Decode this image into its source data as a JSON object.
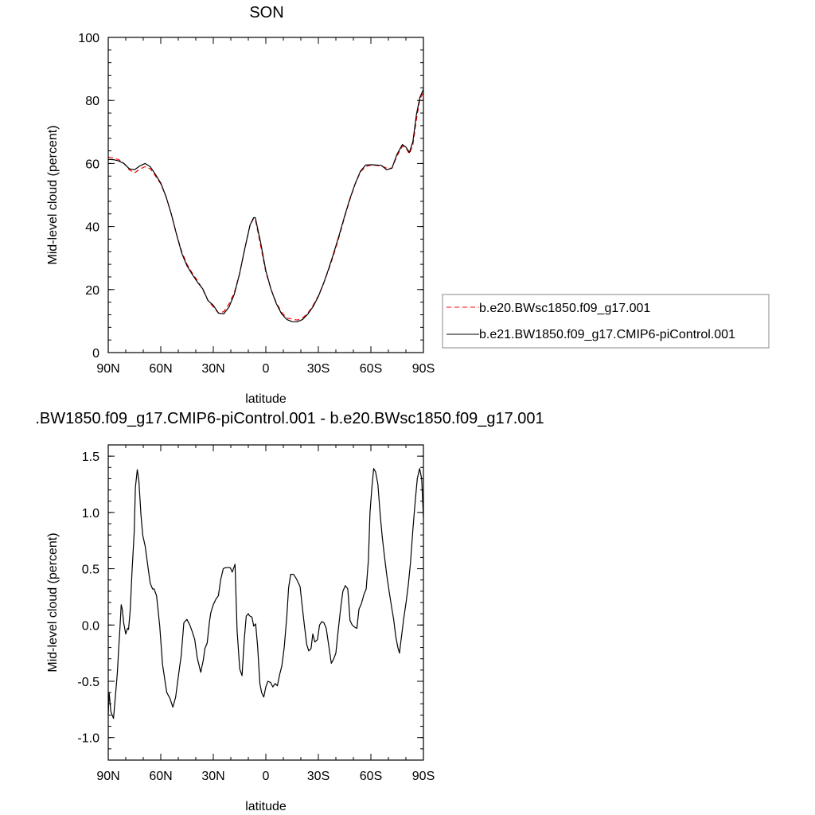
{
  "chart_data": [
    {
      "type": "line",
      "title": "SON",
      "xlabel": "latitude",
      "ylabel": "Mid-level cloud (percent)",
      "xlim": [
        90,
        -90
      ],
      "ylim": [
        0,
        100
      ],
      "x_ticks": [
        90,
        60,
        30,
        0,
        -30,
        -60,
        -90
      ],
      "x_tick_labels": [
        "90N",
        "60N",
        "30N",
        "0",
        "30S",
        "60S",
        "90S"
      ],
      "y_ticks": [
        0,
        20,
        40,
        60,
        80,
        100
      ],
      "y_tick_labels": [
        "0",
        "20",
        "40",
        "60",
        "80",
        "100"
      ],
      "legend_position": "right",
      "series": [
        {
          "name": "b.e20.BWsc1850.f09_g17.001",
          "color": "#ff0000",
          "dash": "dashed",
          "x": [
            90,
            87,
            84,
            81,
            78,
            75,
            72,
            69,
            66,
            63,
            60,
            57,
            54,
            51,
            48,
            45,
            42,
            39,
            36,
            33,
            30,
            27,
            24,
            21,
            18,
            15,
            12,
            9,
            7,
            6,
            3,
            0,
            -3,
            -6,
            -9,
            -12,
            -15,
            -18,
            -21,
            -24,
            -27,
            -30,
            -33,
            -36,
            -39,
            -42,
            -45,
            -48,
            -51,
            -54,
            -57,
            -60,
            -63,
            -66,
            -69,
            -72,
            -75,
            -78,
            -80,
            -82,
            -84,
            -86,
            -88,
            -90
          ],
          "values": [
            62.0,
            61.7,
            61.2,
            60.0,
            58.0,
            57.0,
            58.2,
            59.0,
            58.3,
            56.0,
            53.5,
            49.5,
            44.0,
            37.5,
            32.0,
            28.0,
            25.2,
            22.8,
            20.0,
            16.5,
            14.5,
            12.5,
            13.0,
            15.5,
            19.0,
            25.0,
            33.0,
            40.5,
            42.5,
            42.3,
            34.0,
            25.5,
            20.0,
            15.8,
            12.8,
            11.0,
            10.6,
            10.3,
            11.0,
            12.5,
            15.0,
            18.0,
            22.0,
            26.5,
            31.5,
            37.0,
            43.0,
            48.5,
            53.5,
            57.3,
            59.0,
            59.5,
            59.4,
            59.2,
            58.5,
            58.5,
            62.5,
            65.5,
            65.0,
            63.0,
            66.0,
            74.0,
            80.5,
            82.5
          ]
        },
        {
          "name": "b.e21.BW1850.f09_g17.CMIP6-piControl.001",
          "color": "#000000",
          "dash": "solid",
          "x": [
            90,
            87,
            84,
            81,
            78,
            75,
            72,
            69,
            66,
            63,
            60,
            57,
            54,
            51,
            48,
            45,
            42,
            39,
            36,
            33,
            30,
            27,
            24,
            21,
            18,
            15,
            12,
            9,
            7,
            6,
            3,
            0,
            -3,
            -6,
            -9,
            -12,
            -15,
            -18,
            -21,
            -24,
            -27,
            -30,
            -33,
            -36,
            -39,
            -42,
            -45,
            -48,
            -51,
            -54,
            -57,
            -60,
            -63,
            -66,
            -69,
            -72,
            -75,
            -78,
            -80,
            -82,
            -84,
            -86,
            -88,
            -90
          ],
          "values": [
            61.3,
            61.2,
            60.8,
            60.0,
            58.3,
            58.0,
            59.2,
            60.0,
            59.0,
            56.5,
            53.8,
            49.5,
            44.0,
            37.5,
            31.5,
            27.5,
            24.8,
            22.3,
            20.2,
            16.5,
            15.0,
            12.5,
            12.3,
            14.5,
            18.5,
            25.0,
            33.0,
            40.5,
            42.8,
            42.8,
            35.0,
            26.0,
            20.0,
            15.5,
            12.3,
            10.5,
            9.8,
            9.8,
            10.5,
            12.2,
            14.6,
            17.8,
            22.0,
            26.8,
            32.0,
            37.5,
            43.3,
            48.8,
            53.5,
            57.5,
            59.5,
            59.6,
            59.5,
            59.4,
            58.0,
            58.5,
            63.0,
            66.0,
            65.2,
            63.5,
            67.0,
            75.5,
            81.0,
            83.5
          ]
        }
      ]
    },
    {
      "type": "line",
      "title": ".BW1850.f09_g17.CMIP6-piControl.001 - b.e20.BWsc1850.f09_g17.001",
      "xlabel": "latitude",
      "ylabel": "Mid-level cloud (percent)",
      "xlim": [
        90,
        -90
      ],
      "ylim": [
        -1.2,
        1.6
      ],
      "x_ticks": [
        90,
        60,
        30,
        0,
        -30,
        -60,
        -90
      ],
      "x_tick_labels": [
        "90N",
        "60N",
        "30N",
        "0",
        "30S",
        "60S",
        "90S"
      ],
      "y_ticks": [
        -1.0,
        -0.5,
        0.0,
        0.5,
        1.0,
        1.5
      ],
      "y_tick_labels": [
        "-1.0",
        "-0.5",
        "0.0",
        "0.5",
        "1.0",
        "1.5"
      ],
      "series": [
        {
          "color": "#000000",
          "x": [
            90,
            89.5,
            88.5,
            87,
            86,
            84.8,
            84,
            83.3,
            82.6,
            82,
            81.2,
            80,
            79,
            78.4,
            77.4,
            76.4,
            75.2,
            74.5,
            73.4,
            72.5,
            71.3,
            70.3,
            68.9,
            66.9,
            66,
            64.7,
            63.8,
            62.4,
            60.6,
            59,
            56.6,
            54.8,
            53.1,
            51.5,
            49.9,
            48.3,
            46.8,
            45.1,
            43.4,
            42,
            40.6,
            39.2,
            37.2,
            35.7,
            34.8,
            33.5,
            32.2,
            31.4,
            30,
            28.5,
            27.1,
            25.8,
            24.3,
            23.1,
            21.6,
            20.3,
            19.2,
            17.6,
            16.4,
            14.9,
            13.6,
            12.3,
            11.2,
            9.9,
            9.7,
            9.1,
            7.9,
            6.9,
            5.8,
            4.7,
            3.4,
            2.4,
            1.2,
            0,
            -1.2,
            -2.7,
            -4,
            -5.3,
            -6.6,
            -7.9,
            -9.2,
            -10.5,
            -12,
            -13,
            -14.2,
            -15.8,
            -17.1,
            -18.4,
            -19.6,
            -20.7,
            -22,
            -23.3,
            -24.5,
            -25.8,
            -26.8,
            -28,
            -29.5,
            -30.7,
            -32,
            -33.2,
            -34.5,
            -36.1,
            -37.4,
            -38.8,
            -40,
            -41.3,
            -42.8,
            -44,
            -45.4,
            -46.8,
            -48.1,
            -49.3,
            -50.8,
            -52,
            -53.2,
            -54.6,
            -56,
            -57.3,
            -58.6,
            -59.5,
            -60.5,
            -61.6,
            -62.7,
            -64,
            -65.3,
            -66.5,
            -67.7,
            -69,
            -70.4,
            -71.8,
            -73,
            -74.2,
            -75.4,
            -76.3,
            -77.5,
            -78.7,
            -80.1,
            -81.3,
            -82.6,
            -84,
            -85.3,
            -86.5,
            -87.8,
            -89,
            -90
          ],
          "values": [
            -0.8,
            -0.6,
            -0.77,
            -0.83,
            -0.65,
            -0.43,
            -0.2,
            -0.03,
            0.18,
            0.14,
            0.02,
            -0.08,
            -0.03,
            -0.04,
            0.14,
            0.48,
            0.82,
            1.22,
            1.38,
            1.28,
            0.98,
            0.8,
            0.7,
            0.47,
            0.37,
            0.32,
            0.32,
            0.26,
            -0.01,
            -0.35,
            -0.6,
            -0.65,
            -0.73,
            -0.64,
            -0.45,
            -0.27,
            0.02,
            0.05,
            0.0,
            -0.06,
            -0.13,
            -0.29,
            -0.42,
            -0.31,
            -0.21,
            -0.16,
            0.03,
            0.11,
            0.18,
            0.23,
            0.26,
            0.4,
            0.5,
            0.51,
            0.51,
            0.51,
            0.47,
            0.54,
            -0.05,
            -0.39,
            -0.45,
            -0.13,
            0.08,
            0.1,
            0.09,
            0.08,
            0.07,
            -0.01,
            0.01,
            -0.19,
            -0.52,
            -0.6,
            -0.64,
            -0.55,
            -0.5,
            -0.51,
            -0.55,
            -0.52,
            -0.54,
            -0.44,
            -0.36,
            -0.2,
            0.08,
            0.33,
            0.45,
            0.45,
            0.42,
            0.38,
            0.34,
            0.18,
            0.0,
            -0.17,
            -0.23,
            -0.21,
            -0.08,
            -0.15,
            -0.13,
            0.0,
            0.03,
            0.02,
            -0.03,
            -0.2,
            -0.34,
            -0.3,
            -0.25,
            -0.05,
            0.16,
            0.3,
            0.35,
            0.32,
            0.04,
            0.0,
            -0.02,
            -0.03,
            0.14,
            0.19,
            0.27,
            0.32,
            0.58,
            1.0,
            1.21,
            1.39,
            1.36,
            1.25,
            0.98,
            0.78,
            0.62,
            0.45,
            0.3,
            0.16,
            0.05,
            -0.1,
            -0.2,
            -0.25,
            -0.1,
            0.05,
            0.2,
            0.35,
            0.55,
            0.85,
            1.1,
            1.3,
            1.39,
            1.3,
            0.95
          ]
        }
      ]
    }
  ]
}
